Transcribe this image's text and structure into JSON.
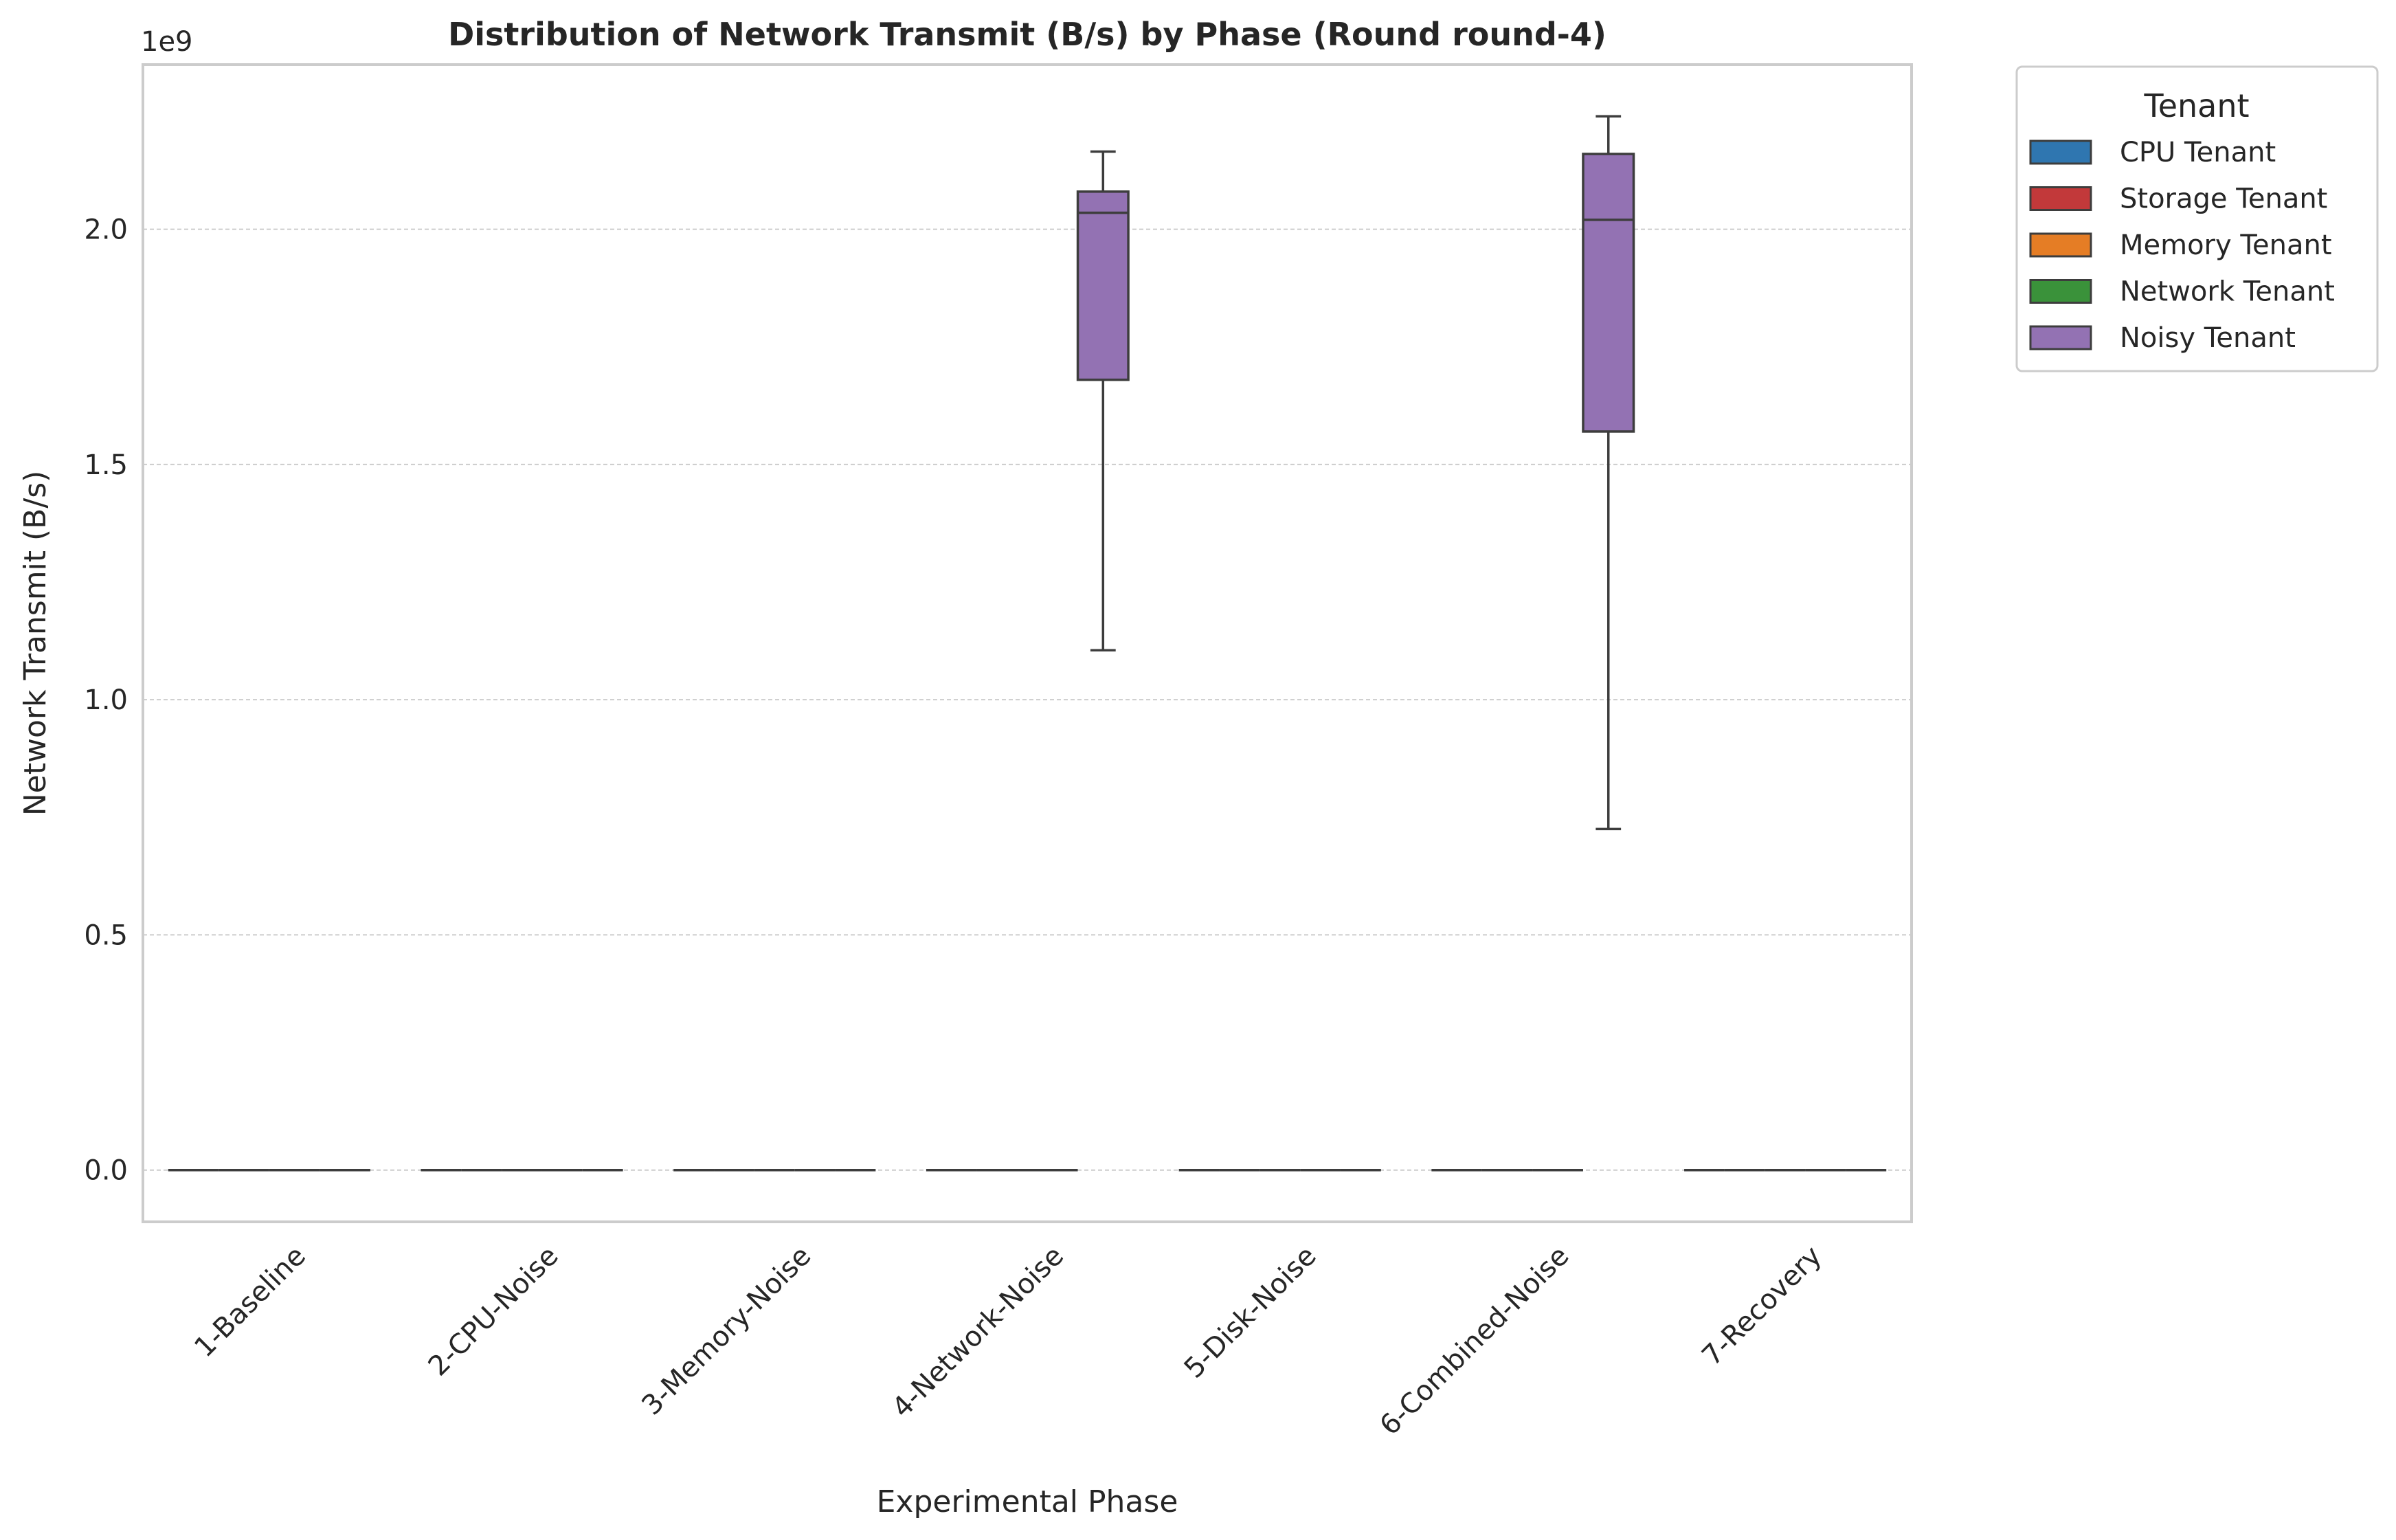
{
  "chart_data": {
    "type": "box",
    "title": "Distribution of Network Transmit (B/s) by Phase (Round round-4)",
    "xlabel": "Experimental Phase",
    "ylabel": "Network Transmit (B/s)",
    "y_offset_label": "1e9",
    "ylim": [
      -0.11,
      2.35
    ],
    "ytick_values": [
      0.0,
      0.5,
      1.0,
      1.5,
      2.0
    ],
    "ytick_labels": [
      "0.0",
      "0.5",
      "1.0",
      "1.5",
      "2.0"
    ],
    "grid": "y-dashed",
    "categories": [
      "1-Baseline",
      "2-CPU-Noise",
      "3-Memory-Noise",
      "4-Network-Noise",
      "5-Disk-Noise",
      "6-Combined-Noise",
      "7-Recovery"
    ],
    "legend": {
      "title": "Tenant",
      "placement": "outside upper-right",
      "entries": [
        {
          "label": "CPU Tenant",
          "color": "#2f76b0"
        },
        {
          "label": "Storage Tenant",
          "color": "#c2393a"
        },
        {
          "label": "Memory Tenant",
          "color": "#e57d25"
        },
        {
          "label": "Network Tenant",
          "color": "#3a923a"
        },
        {
          "label": "Noisy Tenant",
          "color": "#9372b3"
        }
      ]
    },
    "tenants_per_phase": [
      [
        "CPU Tenant",
        "Storage Tenant",
        "Memory Tenant",
        "Network Tenant"
      ],
      [
        "CPU Tenant",
        "Storage Tenant",
        "Memory Tenant",
        "Network Tenant",
        "Noisy Tenant"
      ],
      [
        "CPU Tenant",
        "Storage Tenant",
        "Memory Tenant",
        "Network Tenant",
        "Noisy Tenant"
      ],
      [
        "CPU Tenant",
        "Storage Tenant",
        "Memory Tenant",
        "Noisy Tenant"
      ],
      [
        "CPU Tenant",
        "Storage Tenant",
        "Memory Tenant",
        "Network Tenant",
        "Noisy Tenant"
      ],
      [
        "CPU Tenant",
        "Storage Tenant",
        "Memory Tenant",
        "Noisy Tenant"
      ],
      [
        "CPU Tenant",
        "Storage Tenant",
        "Memory Tenant",
        "Network Tenant",
        "Noisy Tenant"
      ]
    ],
    "series": [
      {
        "name": "Noisy Tenant",
        "boxes": [
          {
            "category": "4-Network-Noise",
            "whisker_low": 1.105,
            "q1": 1.68,
            "median": 2.035,
            "q3": 2.08,
            "whisker_high": 2.165
          },
          {
            "category": "6-Combined-Noise",
            "whisker_low": 0.725,
            "q1": 1.57,
            "median": 2.02,
            "q3": 2.16,
            "whisker_high": 2.24
          }
        ],
        "default_value": 0.0
      },
      {
        "name": "CPU Tenant",
        "default_value": 0.0
      },
      {
        "name": "Storage Tenant",
        "default_value": 0.0
      },
      {
        "name": "Memory Tenant",
        "default_value": 0.0
      },
      {
        "name": "Network Tenant",
        "default_value": 0.0
      }
    ]
  }
}
